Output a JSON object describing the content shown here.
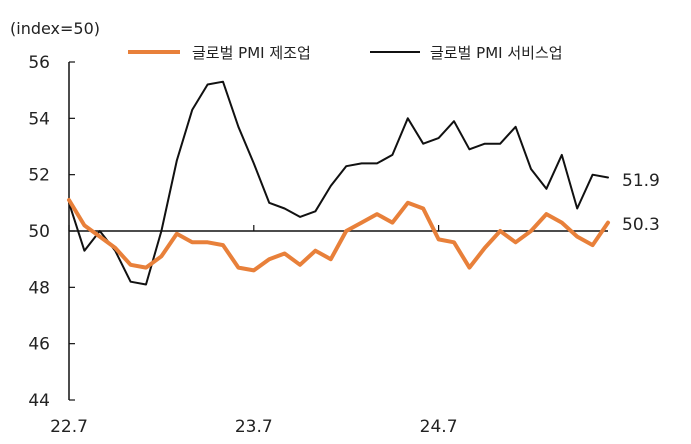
{
  "chart_data": {
    "type": "line",
    "unit_label": "(index=50)",
    "x_tick_labels": [
      "22.7",
      "23.7",
      "24.7"
    ],
    "y_ticks": [
      44,
      46,
      48,
      50,
      52,
      54,
      56
    ],
    "ylim": [
      44,
      56
    ],
    "reference_line": 50,
    "legend_placement": "top",
    "series": [
      {
        "name": "글로벌 PMI 제조업",
        "color": "#E8803A",
        "end_label": "50.3",
        "values": [
          51.1,
          50.2,
          49.8,
          49.4,
          48.8,
          48.7,
          49.1,
          49.9,
          49.6,
          49.6,
          49.5,
          48.7,
          48.6,
          49.0,
          49.2,
          48.8,
          49.3,
          49.0,
          50.0,
          50.3,
          50.6,
          50.3,
          51.0,
          50.8,
          49.7,
          49.6,
          48.7,
          49.4,
          50.0,
          49.6,
          50.0,
          50.6,
          50.3,
          49.8,
          49.5,
          50.3
        ]
      },
      {
        "name": "글로벌 PMI 서비스업",
        "color": "#111111",
        "end_label": "51.9",
        "values": [
          51.0,
          49.3,
          50.0,
          49.3,
          48.2,
          48.1,
          50.0,
          52.5,
          54.3,
          55.2,
          55.3,
          53.7,
          52.4,
          51.0,
          50.8,
          50.5,
          50.7,
          51.6,
          52.3,
          52.4,
          52.4,
          52.7,
          54.0,
          53.1,
          53.3,
          53.9,
          52.9,
          53.1,
          53.1,
          53.7,
          52.2,
          51.5,
          52.7,
          50.8,
          52.0,
          51.9
        ]
      }
    ]
  }
}
